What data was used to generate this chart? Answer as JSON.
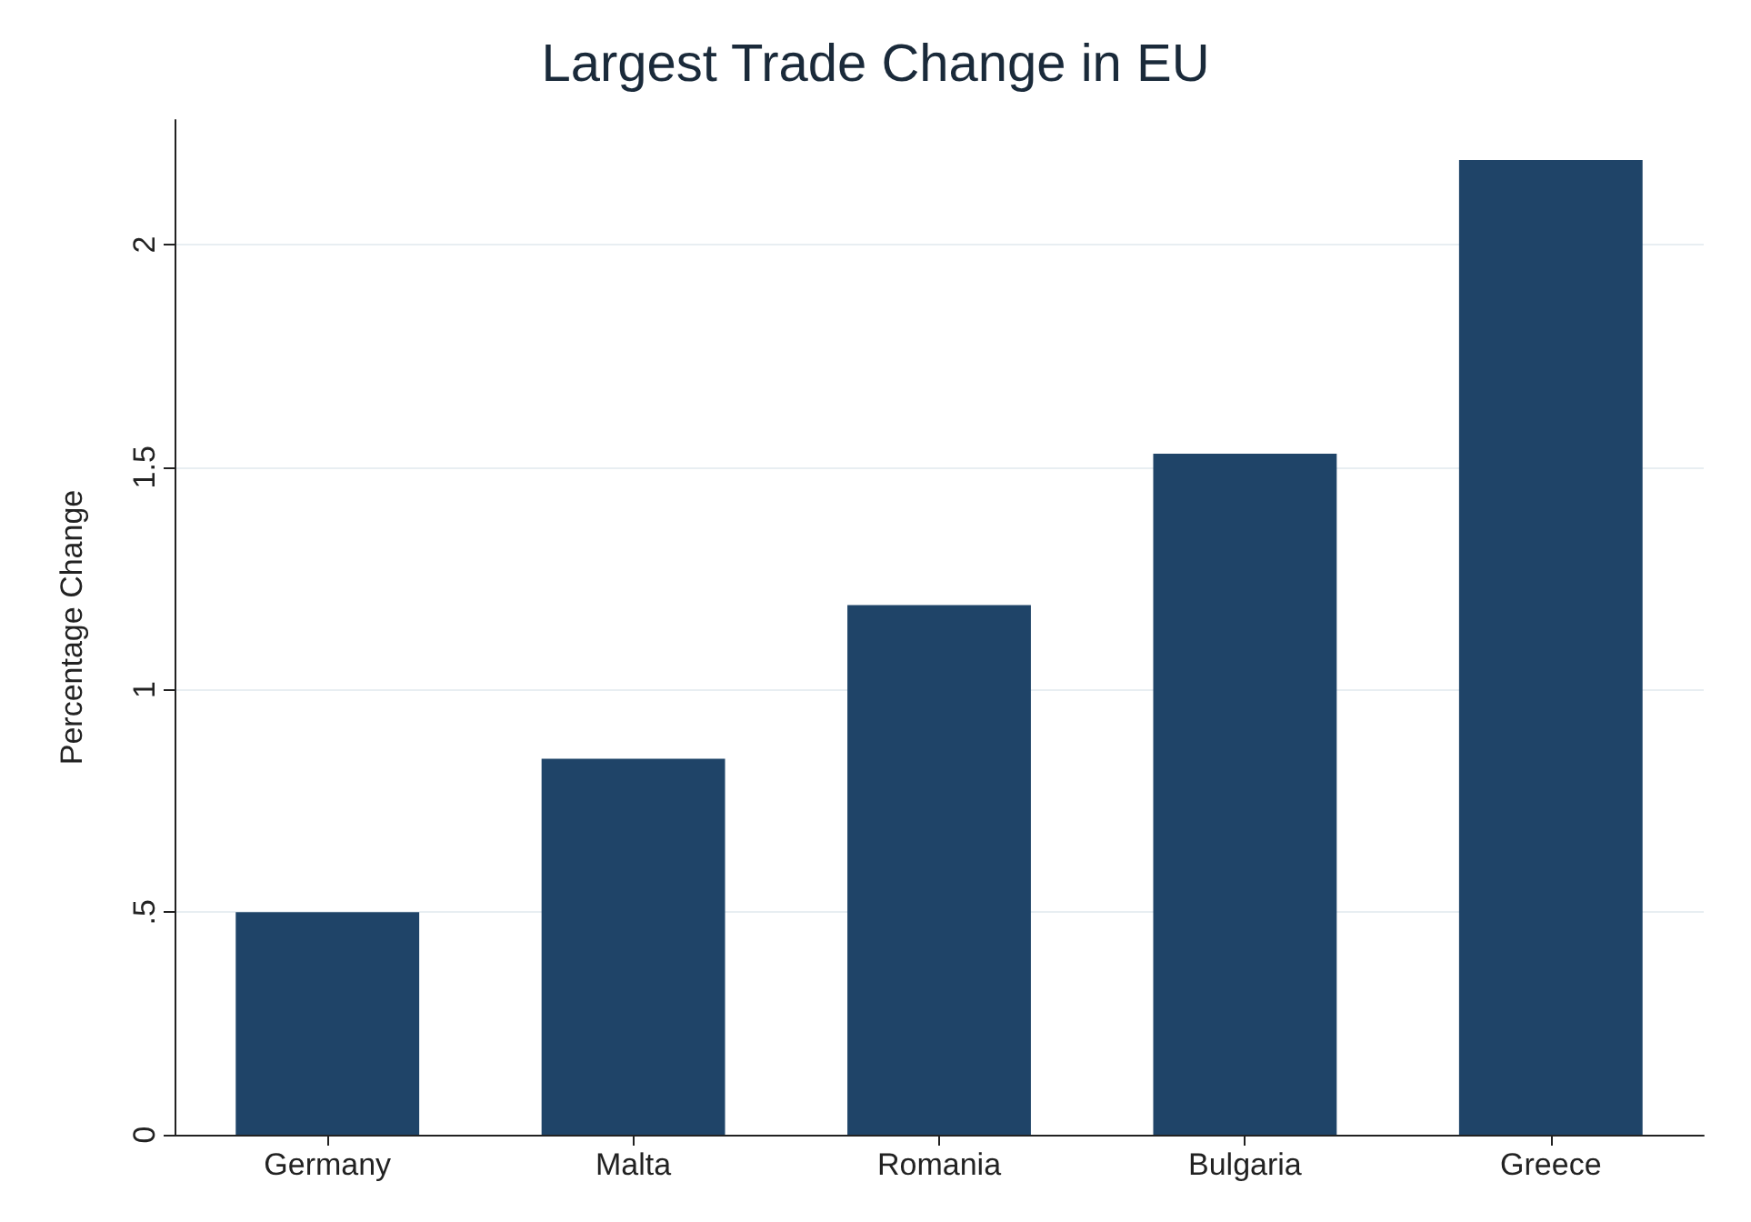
{
  "chart_data": {
    "type": "bar",
    "title": "Largest Trade Change in EU",
    "ylabel": "Percentage Change",
    "categories": [
      "Germany",
      "Malta",
      "Romania",
      "Bulgaria",
      "Greece"
    ],
    "values": [
      0.5,
      0.845,
      1.19,
      1.53,
      2.19
    ],
    "color": "#1f4468",
    "ylim": [
      0,
      2.28
    ],
    "yticks": [
      0,
      {
        "value": 0.5,
        "label": ".5"
      },
      1,
      1.5,
      2
    ],
    "grid": "y"
  }
}
